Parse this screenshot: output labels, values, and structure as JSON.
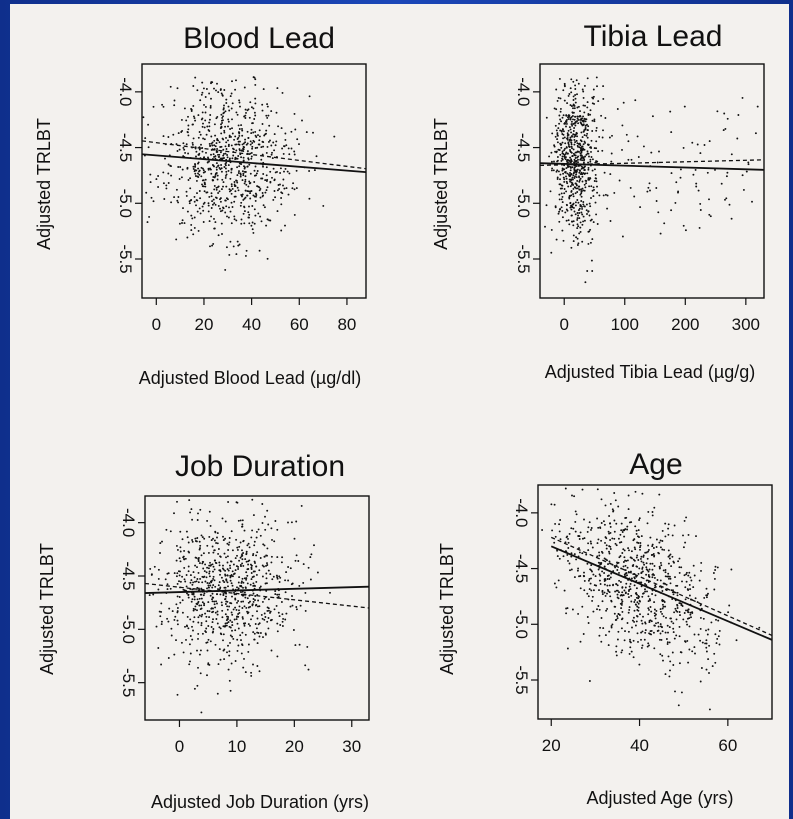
{
  "chart_data": [
    {
      "type": "scatter",
      "title": "Blood Lead",
      "xlabel": "Adjusted Blood Lead (µg/dl)",
      "ylabel": "Adjusted TRLBT",
      "xlim": [
        -6,
        88
      ],
      "ylim": [
        -5.85,
        -3.75
      ],
      "xticks": [
        0,
        20,
        40,
        60,
        80
      ],
      "xtick_labels": [
        "0",
        "20",
        "40",
        "60",
        "80"
      ],
      "yticks": [
        -4.0,
        -4.5,
        -5.0,
        -5.5
      ],
      "ytick_labels": [
        "-4.0",
        "-4.5",
        "-5.0",
        "-5.5"
      ],
      "fit_solid": {
        "x": [
          -6,
          88
        ],
        "y": [
          -4.56,
          -4.72
        ]
      },
      "fit_dashed": {
        "x": [
          -6,
          88
        ],
        "y": [
          -4.44,
          -4.69
        ]
      },
      "points": {
        "n": 850,
        "x_mean": 30,
        "x_sd": 14,
        "y_mean": -4.62,
        "y_sd": 0.33
      }
    },
    {
      "type": "scatter",
      "title": "Tibia Lead",
      "xlabel": "Adjusted Tibia Lead (µg/g)",
      "ylabel": "Adjusted TRLBT",
      "xlim": [
        -40,
        330
      ],
      "ylim": [
        -5.85,
        -3.75
      ],
      "xticks": [
        0,
        100,
        200,
        300
      ],
      "xtick_labels": [
        "0",
        "100",
        "200",
        "300"
      ],
      "yticks": [
        -4.0,
        -4.5,
        -5.0,
        -5.5
      ],
      "ytick_labels": [
        "-4.0",
        "-4.5",
        "-5.0",
        "-5.5"
      ],
      "fit_solid": {
        "x": [
          -40,
          330
        ],
        "y": [
          -4.64,
          -4.7
        ]
      },
      "fit_dashed": {
        "x": [
          -40,
          330
        ],
        "y": [
          -4.66,
          -4.61
        ]
      },
      "points": {
        "n": 800,
        "x_mean": 18,
        "x_sd": 22,
        "y_mean": -4.62,
        "y_sd": 0.33
      }
    },
    {
      "type": "scatter",
      "title": "Job Duration",
      "xlabel": "Adjusted Job Duration (yrs)",
      "ylabel": "Adjusted TRLBT",
      "xlim": [
        -6,
        33
      ],
      "ylim": [
        -5.85,
        -3.75
      ],
      "xticks": [
        0,
        10,
        20,
        30
      ],
      "xtick_labels": [
        "0",
        "10",
        "20",
        "30"
      ],
      "yticks": [
        -4.0,
        -4.5,
        -5.0,
        -5.5
      ],
      "ytick_labels": [
        "-4.0",
        "-4.5",
        "-5.0",
        "-5.5"
      ],
      "fit_solid": {
        "x": [
          -6,
          33
        ],
        "y": [
          -4.66,
          -4.6
        ]
      },
      "fit_dashed": {
        "x": [
          -6,
          33
        ],
        "y": [
          -4.57,
          -4.8
        ]
      },
      "points": {
        "n": 850,
        "x_mean": 8,
        "x_sd": 6,
        "y_mean": -4.63,
        "y_sd": 0.34
      }
    },
    {
      "type": "scatter",
      "title": "Age",
      "xlabel": "Adjusted Age (yrs)",
      "ylabel": "Adjusted TRLBT",
      "xlim": [
        17,
        70
      ],
      "ylim": [
        -5.85,
        -3.75
      ],
      "xticks": [
        20,
        40,
        60
      ],
      "xtick_labels": [
        "20",
        "40",
        "60"
      ],
      "yticks": [
        -4.0,
        -4.5,
        -5.0,
        -5.5
      ],
      "ytick_labels": [
        "-4.0",
        "-4.5",
        "-5.0",
        "-5.5"
      ],
      "fit_solid": {
        "x": [
          20,
          70
        ],
        "y": [
          -4.3,
          -5.14
        ]
      },
      "fit_dashed": {
        "x": [
          20,
          70
        ],
        "y": [
          -4.22,
          -5.1
        ]
      },
      "points": {
        "n": 850,
        "x_mean": 40,
        "x_sd": 9,
        "y_mean": -4.65,
        "y_sd": 0.32,
        "slope": -0.017
      }
    }
  ]
}
